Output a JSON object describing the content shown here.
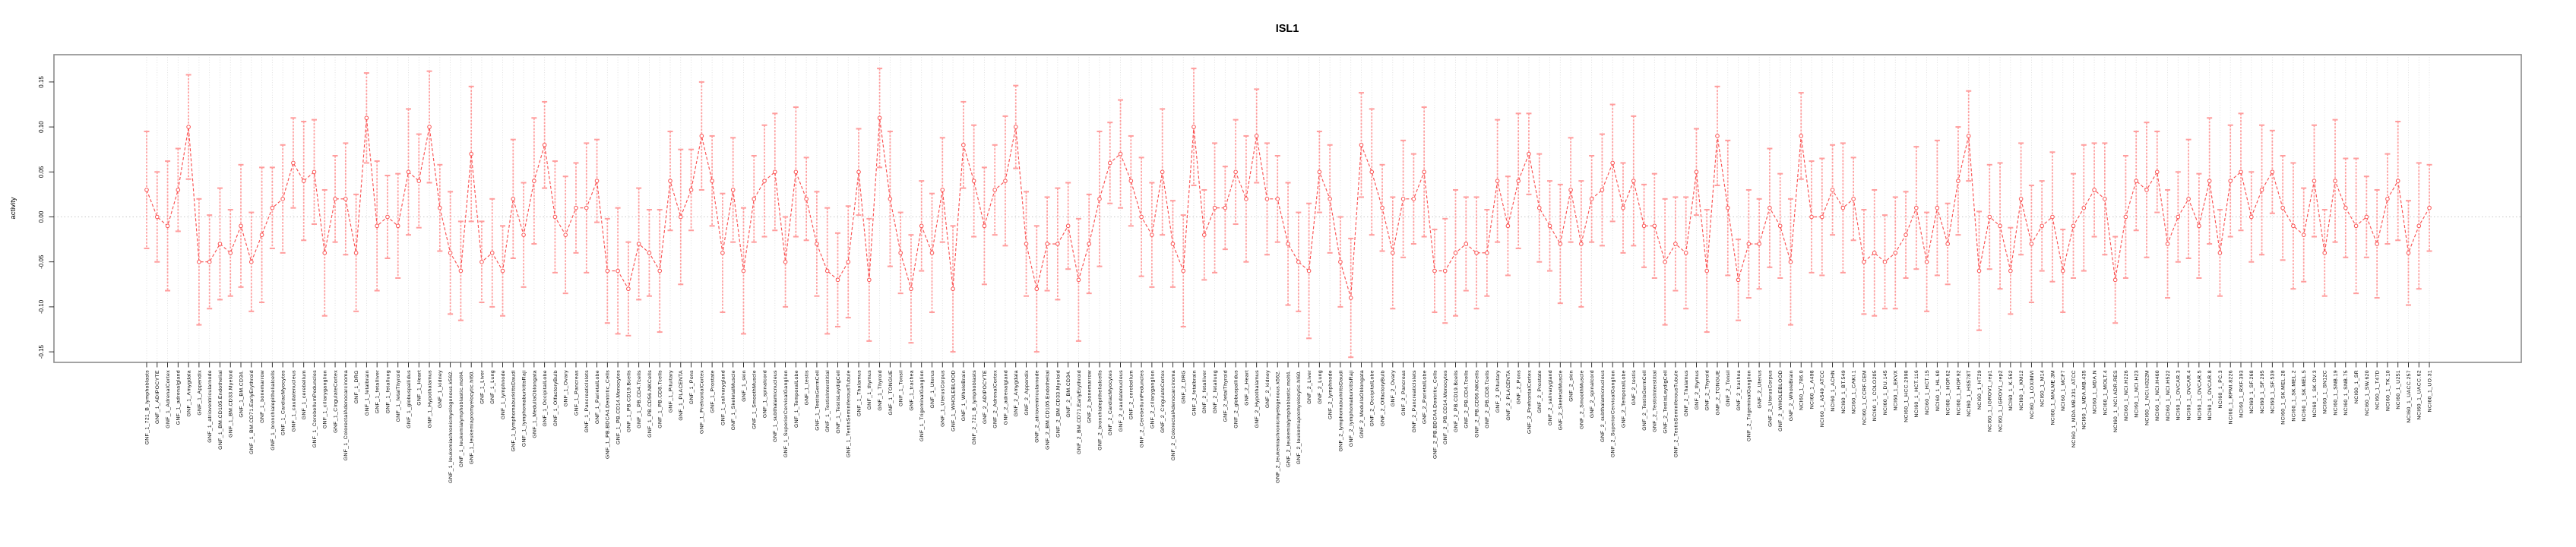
{
  "title": "ISL1",
  "ylabel": "activity",
  "colors": {
    "point_stroke": "#fa5252",
    "series_line": "#fa5252",
    "error_bar": "#ff9d9d",
    "grid": "#d8d8d8",
    "frame": "#8c8c8c",
    "tick": "#1a1a1a",
    "zero_line": "#c8c8c8"
  },
  "chart_data": {
    "type": "line",
    "title": "ISL1",
    "xlabel": "",
    "ylabel": "activity",
    "ylim": [
      -0.16,
      0.18
    ],
    "y_tick_labels": [
      "0.15",
      "0.10",
      "0.05",
      "0.00",
      "-0.05",
      "-0.10",
      "-0.15"
    ],
    "y_tick_values": [
      0.15,
      0.1,
      0.05,
      0.0,
      -0.05,
      -0.1,
      -0.15
    ],
    "grid": "vertical dotted gridline at every sample; dotted horizontal line at 0",
    "legend_position": "none",
    "marker": "open-circle",
    "error_bars": true,
    "x_tick_rotation": 90,
    "n_samples": 219,
    "categories": [
      "GNF_1_721_B_lymphoblasts",
      "GNF_1_ADIPOCYTE",
      "GNF_1_AdrenalCortex",
      "GNF_1_adrenalgland",
      "GNF_1_Amygdala",
      "GNF_1_Appendix",
      "GNF_1_atrioventricularnode",
      "GNF_1_BM.CD105.Endothelial",
      "GNF_1_BM.CD33.Myeloid",
      "GNF_1_BM.CD34.",
      "GNF_1_BM.CD71.EarlyErythroid",
      "GNF_1_bonemarrow",
      "GNF_1_bronchialepithelialcells",
      "GNF_1_CardiacMyocytes",
      "GNF_1_caudatenucleus",
      "GNF_1_cerebellum",
      "GNF_1_CerebellumPeduncles",
      "GNF_1_ciliaryganglion",
      "GNF_1_CingulateCortex",
      "GNF_1_ColorectalAdenocarcinoma",
      "GNF_1_DRG",
      "GNF_1_fetalbrain",
      "GNF_1_fetalliver",
      "GNF_1_fetallung",
      "GNF_1_fetalThyroid",
      "GNF_1_globuspallidus",
      "GNF_1_Heart",
      "GNF_1_Hypothalamus",
      "GNF_1_kidney",
      "GNF_1_leukemiachronicmyelogenous.k562.",
      "GNF_1_leukemialymphoblastic.molt4.",
      "GNF_1_leukemiapromyelocytic.hl60.",
      "GNF_1_Liver",
      "GNF_1_Lung",
      "GNF_1_lymphnode",
      "GNF_1_lymphomaburkittsDaudi",
      "GNF_1_lymphomaburkittsRaji",
      "GNF_1_MedullaOblongata",
      "GNF_1_OccipitalLobe",
      "GNF_1_OlfactoryBulb",
      "GNF_1_Ovary",
      "GNF_1_Pancreas",
      "GNF_1_PancreaticIslets",
      "GNF_1_ParietalLobe",
      "GNF_1_PB.BDCA4.Dentritic_Cells",
      "GNF_1_PB.CD14.Monocytes",
      "GNF_1_PB.CD19.Bcells",
      "GNF_1_PB.CD4.Tcells",
      "GNF_1_PB.CD56.NKCells",
      "GNF_1_PB.CD8.Tcells",
      "GNF_1_Pituitary",
      "GNF_1_PLACENTA",
      "GNF_1_Pons",
      "GNF_1_PrefrontalCortex",
      "GNF_1_Prostate",
      "GNF_1_salivarygland",
      "GNF_1_SkeletalMuscle",
      "GNF_1_skin",
      "GNF_1_SmoothMuscle",
      "GNF_1_spinalcord",
      "GNF_1_subthalamicnucleus",
      "GNF_1_SuperiorCervicalGanglion",
      "GNF_1_TemporalLobe",
      "GNF_1_testis",
      "GNF_1_TestisGermCell",
      "GNF_1_TestisInterstitial",
      "GNF_1_TestisLeydigCell",
      "GNF_1_TestisSeminiferousTubule",
      "GNF_1_Thalamus",
      "GNF_1_thymus",
      "GNF_1_Thyroid",
      "GNF_1_TONGUE",
      "GNF_1_Tonsil",
      "GNF_1_trachea",
      "GNF_1_TrigeminalGanglion",
      "GNF_1_Uterus",
      "GNF_1_UterusCorpus",
      "GNF_1_WHOLEBLOOD",
      "GNF_1_WholeBrain",
      "GNF_2_721_B_lymphoblasts",
      "GNF_2_ADIPOCYTE",
      "GNF_2_AdrenalCortex",
      "GNF_2_adrenalgland",
      "GNF_2_Amygdala",
      "GNF_2_Appendix",
      "GNF_2_atrioventricularnode",
      "GNF_2_BM.CD105.Endothelial",
      "GNF_2_BM.CD33.Myeloid",
      "GNF_2_BM.CD34.",
      "GNF_2_BM.CD71.EarlyErythroid",
      "GNF_2_bonemarrow",
      "GNF_2_bronchialepithelialcells",
      "GNF_2_CardiacMyocytes",
      "GNF_2_caudatenucleus",
      "GNF_2_cerebellum",
      "GNF_2_CerebellumPeduncles",
      "GNF_2_ciliaryganglion",
      "GNF_2_CingulateCortex",
      "GNF_2_ColorectalAdenocarcinoma",
      "GNF_2_DRG",
      "GNF_2_fetalbrain",
      "GNF_2_fetalliver",
      "GNF_2_fetallung",
      "GNF_2_fetalThyroid",
      "GNF_2_globuspallidus",
      "GNF_2_Heart",
      "GNF_2_Hypothalamus",
      "GNF_2_kidney",
      "GNF_2_leukemiachronicmyelogenous.k562.",
      "GNF_2_leukemialymphoblastic.molt4.",
      "GNF_2_leukemiapromyelocytic.hl60.",
      "GNF_2_Liver",
      "GNF_2_Lung",
      "GNF_2_lymphnode",
      "GNF_2_lymphomaburkittsDaudi",
      "GNF_2_lymphomaburkittsRaji",
      "GNF_2_MedullaOblongata",
      "GNF_2_OccipitalLobe",
      "GNF_2_OlfactoryBulb",
      "GNF_2_Ovary",
      "GNF_2_Pancreas",
      "GNF_2_PancreaticIslets",
      "GNF_2_ParietalLobe",
      "GNF_2_PB.BDCA4.Dentritic_Cells",
      "GNF_2_PB.CD14.Monocytes",
      "GNF_2_PB.CD19.Bcells",
      "GNF_2_PB.CD4.Tcells",
      "GNF_2_PB.CD56.NKCells",
      "GNF_2_PB.CD8.Tcells",
      "GNF_2_Pituitary",
      "GNF_2_PLACENTA",
      "GNF_2_Pons",
      "GNF_2_PrefrontalCortex",
      "GNF_2_Prostate",
      "GNF_2_salivarygland",
      "GNF_2_SkeletalMuscle",
      "GNF_2_skin",
      "GNF_2_SmoothMuscle",
      "GNF_2_spinalcord",
      "GNF_2_subthalamicnucleus",
      "GNF_2_SuperiorCervicalGanglion",
      "GNF_2_TemporalLobe",
      "GNF_2_testis",
      "GNF_2_TestisGermCell",
      "GNF_2_TestisInterstitial",
      "GNF_2_TestisLeydigCell",
      "GNF_2_TestisSeminiferousTubule",
      "GNF_2_Thalamus",
      "GNF_2_thymus",
      "GNF_2_Thyroid",
      "GNF_2_TONGUE",
      "GNF_2_Tonsil",
      "GNF_2_trachea",
      "GNF_2_TrigeminalGanglion",
      "GNF_2_Uterus",
      "GNF_2_UterusCorpus",
      "GNF_2_WHOLEBLOOD",
      "GNF_2_WholeBrain",
      "NCI60_1_786.0",
      "NCI60_1_A498",
      "NCI60_1_A549_ATCC",
      "NCI60_1_ACHN",
      "NCI60_1_BT.549",
      "NCI60_1_CAKI.1",
      "NCI60_1_CCRF.CEM",
      "NCI60_1_COLO205",
      "NCI60_1_DU.145",
      "NCI60_1_EKVX",
      "NCI60_1_HCC.2998",
      "NCI60_1_HCT.116",
      "NCI60_1_HCT.15",
      "NCI60_1_HL.60",
      "NCI60_1_HOP.62",
      "NCI60_1_HOP.92",
      "NCI60_1_HS578T",
      "NCI60_1_HT29",
      "NCI60_1_IGROV1_rep1",
      "NCI60_1_IGROV1_rep2",
      "NCI60_1_K.562",
      "NCI60_1_KM12",
      "NCI60_1_LOXIMVI",
      "NCI60_1_M14",
      "NCI60_1_MALME.3M",
      "NCI60_1_MCF7",
      "NCI60_1_MDA.MB.231_ATCC",
      "NCI60_1_MDA.MB.435",
      "NCI60_1_MDA.N",
      "NCI60_1_MOLT.4",
      "NCI60_1_NCI.ADR.RES",
      "NCI60_1_NCI.H226",
      "NCI60_1_NCI.H23",
      "NCI60_1_NCI.H322M",
      "NCI60_1_NCI.H460",
      "NCI60_1_NCI.H522",
      "NCI60_1_OVCAR.3",
      "NCI60_1_OVCAR.4",
      "NCI60_1_OVCAR.5",
      "NCI60_1_OVCAR.8",
      "NCI60_1_PC.3",
      "NCI60_1_RPMI.8226",
      "NCI60_1_RXF.393",
      "NCI60_1_SF.268",
      "NCI60_1_SF.295",
      "NCI60_1_SF.539",
      "NCI60_1_SK.MEL.28",
      "NCI60_1_SK.MEL.2",
      "NCI60_1_SK.MEL.5",
      "NCI60_1_SK.OV.3",
      "NCI60_1_SN12C",
      "NCI60_1_SNB.19",
      "NCI60_1_SNB.75",
      "NCI60_1_SR",
      "NCI60_1_SW.620",
      "NCI60_1_T47D",
      "NCI60_1_TK.10",
      "NCI60_1_U251",
      "NCI60_1_UACC.257",
      "NCI60_1_UACC.62",
      "NCI60_1_UO.31"
    ],
    "values": [
      0.03,
      0.0,
      -0.01,
      0.03,
      0.1,
      -0.05,
      -0.05,
      -0.03,
      -0.04,
      -0.01,
      -0.05,
      -0.02,
      0.01,
      0.02,
      0.06,
      0.04,
      0.05,
      -0.04,
      0.02,
      0.02,
      -0.04,
      0.11,
      -0.01,
      0.0,
      -0.01,
      0.05,
      0.04,
      0.1,
      0.01,
      -0.04,
      -0.06,
      0.07,
      -0.05,
      -0.04,
      -0.06,
      0.02,
      -0.02,
      0.04,
      0.08,
      0.0,
      -0.02,
      0.01,
      0.01,
      0.04,
      -0.06,
      -0.06,
      -0.08,
      -0.03,
      -0.04,
      -0.06,
      0.04,
      0.0,
      0.03,
      0.09,
      0.04,
      -0.04,
      0.03,
      -0.06,
      0.02,
      0.04,
      0.05,
      -0.05,
      0.05,
      0.02,
      -0.03,
      -0.06,
      -0.07,
      -0.05,
      0.05,
      -0.07,
      0.11,
      0.02,
      -0.04,
      -0.08,
      -0.01,
      -0.04,
      0.03,
      -0.08,
      0.08,
      0.04,
      -0.01,
      0.03,
      0.04,
      0.1,
      -0.03,
      -0.08,
      -0.03,
      -0.03,
      -0.01,
      -0.07,
      -0.03,
      0.02,
      0.06,
      0.07,
      0.04,
      0.0,
      -0.02,
      0.05,
      -0.03,
      -0.06,
      0.1,
      -0.02,
      0.01,
      0.01,
      0.05,
      0.02,
      0.09,
      0.02,
      0.02,
      -0.03,
      -0.05,
      -0.06,
      0.05,
      0.02,
      -0.05,
      -0.09,
      0.08,
      0.05,
      0.01,
      -0.04,
      0.02,
      0.02,
      0.05,
      -0.06,
      -0.06,
      -0.04,
      -0.03,
      -0.04,
      -0.04,
      0.04,
      -0.01,
      0.04,
      0.07,
      0.01,
      -0.01,
      -0.03,
      0.03,
      -0.03,
      0.02,
      0.03,
      0.06,
      0.01,
      0.04,
      -0.01,
      -0.01,
      -0.05,
      -0.03,
      -0.04,
      0.05,
      -0.06,
      0.09,
      0.01,
      -0.07,
      -0.03,
      -0.03,
      0.01,
      -0.01,
      -0.05,
      0.09,
      0.0,
      0.0,
      0.03,
      0.01,
      0.02,
      -0.05,
      -0.04,
      -0.05,
      -0.04,
      -0.02,
      0.01,
      -0.05,
      0.01,
      -0.03,
      0.04,
      0.09,
      -0.06,
      0.0,
      -0.01,
      -0.06,
      0.02,
      -0.03,
      -0.01,
      0.0,
      -0.06,
      -0.01,
      0.01,
      0.03,
      0.02,
      -0.07,
      0.0,
      0.04,
      0.03,
      0.05,
      -0.03,
      0.0,
      0.02,
      -0.01,
      0.04,
      -0.04,
      0.04,
      0.05,
      0.0,
      0.03,
      0.05,
      0.01,
      -0.01,
      -0.02,
      0.04,
      -0.04,
      0.04,
      0.01,
      -0.01,
      0.0,
      -0.03,
      0.02,
      0.04,
      -0.04,
      -0.01,
      0.01
    ],
    "errors": [
      0.065,
      0.05,
      0.072,
      0.046,
      0.058,
      0.07,
      0.052,
      0.062,
      0.048,
      0.068,
      0.055,
      0.075,
      0.045,
      0.06,
      0.05,
      0.066,
      0.058,
      0.07,
      0.048,
      0.062,
      0.065,
      0.05,
      0.072,
      0.046,
      0.058,
      0.07,
      0.052,
      0.062,
      0.048,
      0.068,
      0.055,
      0.075,
      0.045,
      0.06,
      0.05,
      0.066,
      0.058,
      0.07,
      0.048,
      0.062,
      0.065,
      0.05,
      0.072,
      0.046,
      0.058,
      0.07,
      0.052,
      0.062,
      0.048,
      0.068,
      0.055,
      0.075,
      0.045,
      0.06,
      0.05,
      0.066,
      0.058,
      0.07,
      0.048,
      0.062,
      0.065,
      0.05,
      0.072,
      0.046,
      0.058,
      0.07,
      0.052,
      0.062,
      0.048,
      0.068,
      0.055,
      0.075,
      0.045,
      0.06,
      0.05,
      0.066,
      0.058,
      0.07,
      0.048,
      0.062,
      0.065,
      0.05,
      0.072,
      0.046,
      0.058,
      0.07,
      0.052,
      0.062,
      0.048,
      0.068,
      0.055,
      0.075,
      0.045,
      0.06,
      0.05,
      0.066,
      0.058,
      0.07,
      0.048,
      0.062,
      0.065,
      0.05,
      0.072,
      0.046,
      0.058,
      0.07,
      0.052,
      0.062,
      0.048,
      0.068,
      0.055,
      0.075,
      0.045,
      0.06,
      0.05,
      0.066,
      0.058,
      0.07,
      0.048,
      0.062,
      0.065,
      0.05,
      0.072,
      0.046,
      0.058,
      0.07,
      0.052,
      0.062,
      0.048,
      0.068,
      0.055,
      0.075,
      0.045,
      0.06,
      0.05,
      0.066,
      0.058,
      0.07,
      0.048,
      0.062,
      0.065,
      0.05,
      0.072,
      0.046,
      0.058,
      0.07,
      0.052,
      0.062,
      0.048,
      0.068,
      0.055,
      0.075,
      0.045,
      0.06,
      0.05,
      0.066,
      0.058,
      0.07,
      0.048,
      0.062,
      0.065,
      0.05,
      0.072,
      0.046,
      0.058,
      0.07,
      0.052,
      0.062,
      0.048,
      0.068,
      0.055,
      0.075,
      0.045,
      0.06,
      0.05,
      0.066,
      0.058,
      0.07,
      0.048,
      0.062,
      0.065,
      0.05,
      0.072,
      0.046,
      0.058,
      0.07,
      0.052,
      0.062,
      0.048,
      0.068,
      0.055,
      0.075,
      0.045,
      0.06,
      0.05,
      0.066,
      0.058,
      0.07,
      0.048,
      0.062,
      0.065,
      0.05,
      0.072,
      0.046,
      0.058,
      0.07,
      0.052,
      0.062,
      0.048,
      0.068,
      0.055,
      0.075,
      0.045,
      0.06,
      0.05,
      0.066,
      0.058,
      0.07,
      0.048
    ]
  }
}
